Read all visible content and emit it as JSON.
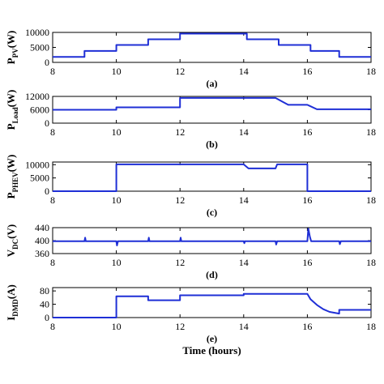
{
  "chart_data": [
    {
      "type": "line",
      "label_main": "P",
      "label_sub": "PV",
      "label_unit": "(W)",
      "caption": "(a)",
      "xlim": [
        8,
        18
      ],
      "ylim": [
        0,
        10000
      ],
      "yticks": [
        0,
        5000,
        10000
      ],
      "ytick_labels": [
        "0",
        "5000",
        "10000"
      ],
      "xticks": [
        8,
        10,
        12,
        14,
        16,
        18
      ],
      "xtick_labels": [
        "8",
        "10",
        "12",
        "14",
        "16",
        "18"
      ],
      "color": "#1f2fd6",
      "x": [
        8,
        9,
        9,
        10,
        10,
        11,
        11,
        12,
        12,
        14.1,
        14.1,
        15.1,
        15.1,
        16.1,
        16.1,
        17,
        17,
        18
      ],
      "y": [
        1800,
        1800,
        3800,
        3800,
        5800,
        5800,
        7700,
        7700,
        9600,
        9600,
        7700,
        7700,
        5800,
        5800,
        3800,
        3800,
        1800,
        1800
      ]
    },
    {
      "type": "line",
      "label_main": "P",
      "label_sub": "Load",
      "label_unit": "(W)",
      "caption": "(b)",
      "xlim": [
        8,
        18
      ],
      "ylim": [
        0,
        12000
      ],
      "yticks": [
        0,
        6000,
        12000
      ],
      "ytick_labels": [
        "0",
        "6000",
        "12000"
      ],
      "xticks": [
        8,
        10,
        12,
        14,
        16,
        18
      ],
      "xtick_labels": [
        "8",
        "10",
        "12",
        "14",
        "16",
        "18"
      ],
      "color": "#1f2fd6",
      "x": [
        8,
        10,
        10,
        12,
        12,
        15,
        15.4,
        16,
        16.3,
        18
      ],
      "y": [
        6000,
        6000,
        7100,
        7100,
        11300,
        11300,
        8200,
        8200,
        6200,
        6200
      ]
    },
    {
      "type": "line",
      "label_main": "P",
      "label_sub": "PHEV",
      "label_unit": "(W)",
      "caption": "(c)",
      "xlim": [
        8,
        18
      ],
      "ylim": [
        0,
        11000
      ],
      "yticks": [
        0,
        5000,
        10000
      ],
      "ytick_labels": [
        "0",
        "5000",
        "10000"
      ],
      "xticks": [
        8,
        10,
        12,
        14,
        16,
        18
      ],
      "xtick_labels": [
        "8",
        "10",
        "12",
        "14",
        "16",
        "18"
      ],
      "color": "#1f2fd6",
      "x": [
        8,
        10,
        10,
        14,
        14.15,
        15,
        15.05,
        16,
        16,
        18
      ],
      "y": [
        0,
        0,
        10100,
        10100,
        8600,
        8600,
        10100,
        10100,
        0,
        0
      ]
    },
    {
      "type": "line",
      "label_main": "V",
      "label_sub": "DC",
      "label_unit": "(V)",
      "caption": "(d)",
      "xlim": [
        8,
        18
      ],
      "ylim": [
        360,
        440
      ],
      "yticks": [
        360,
        400,
        440
      ],
      "ytick_labels": [
        "360",
        "400",
        "440"
      ],
      "xticks": [
        8,
        10,
        12,
        14,
        16,
        18
      ],
      "xtick_labels": [
        "8",
        "10",
        "12",
        "14",
        "16",
        "18"
      ],
      "color": "#1f2fd6",
      "x": [
        8,
        9,
        9.02,
        9.04,
        10,
        10.02,
        10.05,
        11,
        11.02,
        11.04,
        12,
        12.02,
        12.04,
        14,
        14.02,
        14.04,
        15,
        15.02,
        15.05,
        16,
        16.03,
        16.08,
        16.12,
        17,
        17.02,
        17.05,
        18
      ],
      "y": [
        398,
        398,
        409,
        398,
        398,
        385,
        398,
        398,
        409,
        398,
        398,
        409,
        398,
        398,
        392,
        398,
        398,
        388,
        398,
        398,
        437,
        412,
        398,
        398,
        389,
        398,
        398
      ]
    },
    {
      "type": "line",
      "label_main": "I",
      "label_sub": "DMD",
      "label_unit": "(A)",
      "caption": "(e)",
      "xlim": [
        8,
        18
      ],
      "ylim": [
        0,
        90
      ],
      "yticks": [
        0,
        40,
        80
      ],
      "ytick_labels": [
        "0",
        "40",
        "80"
      ],
      "xticks": [
        8,
        10,
        12,
        14,
        16,
        18
      ],
      "xtick_labels": [
        "8",
        "10",
        "12",
        "14",
        "16",
        "18"
      ],
      "xlabel": "Time (hours)",
      "color": "#1f2fd6",
      "x": [
        8,
        10,
        10,
        11,
        11,
        12,
        12,
        14,
        14,
        16,
        16.1,
        16.3,
        16.5,
        16.7,
        17,
        17,
        18
      ],
      "y": [
        0,
        0,
        64,
        64,
        52,
        52,
        67,
        67,
        71,
        71,
        55,
        38,
        25,
        17,
        12,
        23,
        23
      ]
    }
  ]
}
